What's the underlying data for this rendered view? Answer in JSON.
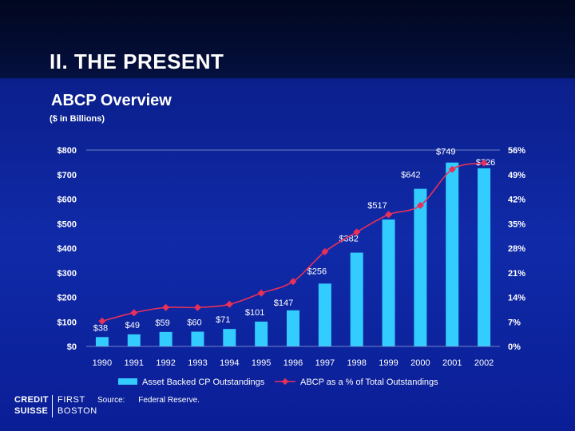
{
  "slide": {
    "title": "II.  THE PRESENT",
    "subtitle": "ABCP Overview",
    "units": "($ in Billions)",
    "source_label": "Source:",
    "source_text": "Federal Reserve."
  },
  "logo": {
    "line1": "CREDIT",
    "line2": "SUISSE",
    "line3": "FIRST",
    "line4": "BOSTON"
  },
  "colors": {
    "bar": "#33ccff",
    "line": "#e8305a",
    "text": "#ffffff"
  },
  "chart_data": {
    "type": "bar",
    "title": "ABCP Overview",
    "ylabel": "($ in Billions)",
    "categories": [
      "1990",
      "1991",
      "1992",
      "1993",
      "1994",
      "1995",
      "1996",
      "1997",
      "1998",
      "1999",
      "2000",
      "2001",
      "2002"
    ],
    "ylim": [
      0,
      800
    ],
    "y2lim": [
      0,
      56
    ],
    "y_ticks": [
      "$0",
      "$100",
      "$200",
      "$300",
      "$400",
      "$500",
      "$600",
      "$700",
      "$800"
    ],
    "y2_ticks": [
      "0%",
      "7%",
      "14%",
      "21%",
      "28%",
      "35%",
      "42%",
      "49%",
      "56%"
    ],
    "grid": false,
    "legend": "bottom",
    "series": [
      {
        "name": "Asset Backed CP Outstandings",
        "type": "bar",
        "axis": "left",
        "values": [
          38,
          49,
          59,
          60,
          71,
          101,
          147,
          256,
          382,
          517,
          642,
          749,
          726
        ],
        "labels": [
          "$38",
          "$49",
          "$59",
          "$60",
          "$71",
          "$101",
          "$147",
          "$256",
          "$382",
          "$517",
          "$642",
          "$749",
          "$726"
        ]
      },
      {
        "name": "ABCP as a % of Total Outstandings",
        "type": "line",
        "axis": "right",
        "values": [
          7.2,
          9.6,
          11.1,
          11.1,
          12.0,
          15.2,
          18.5,
          27.0,
          32.6,
          37.6,
          40.2,
          50.5,
          52.3
        ]
      }
    ]
  }
}
